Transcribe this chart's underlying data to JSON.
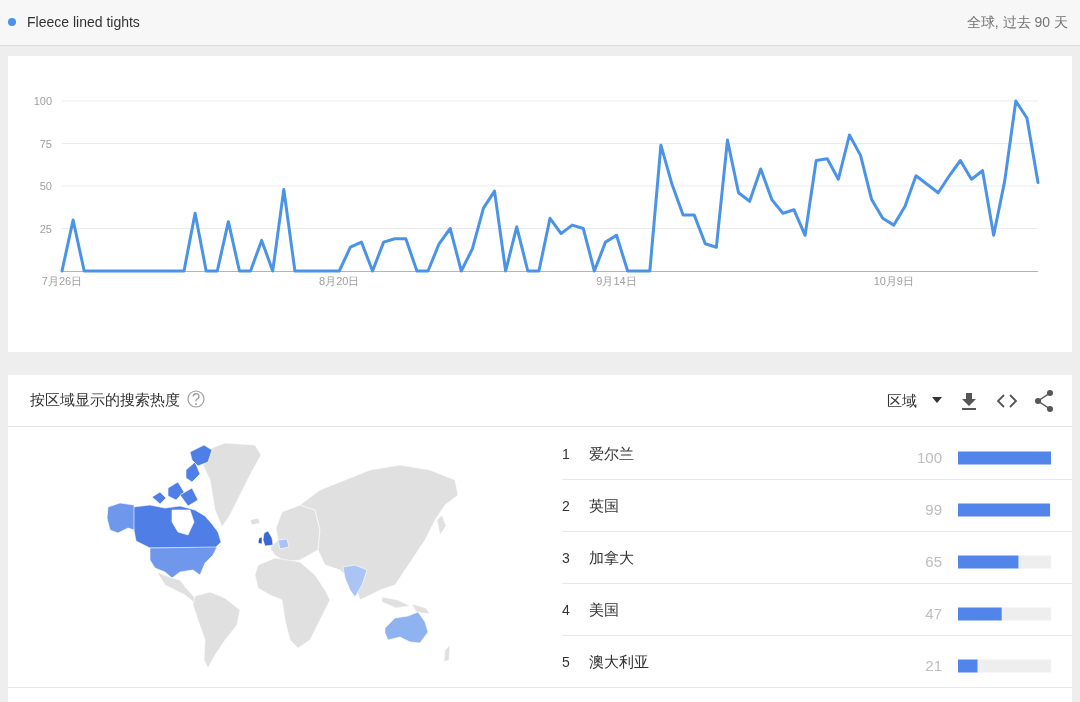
{
  "chart_data": [
    {
      "type": "line",
      "subtitle": "全球, 过去 90 天",
      "legend": "top left",
      "grid": "y",
      "x": [
        "--07-26",
        "--07-27",
        "--07-28",
        "--07-29",
        "--07-30",
        "--07-31",
        "--08-01",
        "--08-02",
        "--08-03",
        "--08-04",
        "--08-05",
        "--08-06",
        "--08-07",
        "--08-08",
        "--08-09",
        "--08-10",
        "--08-11",
        "--08-12",
        "--08-13",
        "--08-14",
        "--08-15",
        "--08-16",
        "--08-17",
        "--08-18",
        "--08-19",
        "--08-20",
        "--08-21",
        "--08-22",
        "--08-23",
        "--08-24",
        "--08-25",
        "--08-26",
        "--08-27",
        "--08-28",
        "--08-29",
        "--08-30",
        "--08-31",
        "--09-01",
        "--09-02",
        "--09-03",
        "--09-04",
        "--09-05",
        "--09-06",
        "--09-07",
        "--09-08",
        "--09-09",
        "--09-10",
        "--09-11",
        "--09-12",
        "--09-13",
        "--09-14",
        "--09-15",
        "--09-16",
        "--09-17",
        "--09-18",
        "--09-19",
        "--09-20",
        "--09-21",
        "--09-22",
        "--09-23",
        "--09-24",
        "--09-25",
        "--09-26",
        "--09-27",
        "--09-28",
        "--09-29",
        "--09-30",
        "--10-01",
        "--10-02",
        "--10-03",
        "--10-04",
        "--10-05",
        "--10-06",
        "--10-07",
        "--10-08",
        "--10-09",
        "--10-10",
        "--10-11",
        "--10-12",
        "--10-13",
        "--10-14",
        "--10-15",
        "--10-16",
        "--10-17",
        "--10-18",
        "--10-19",
        "--10-20",
        "--10-21",
        "--10-22"
      ],
      "xlim": [
        "--07-26",
        "--10-22"
      ],
      "xticks": [
        {
          "value": "--07-26",
          "label": "7月26日"
        },
        {
          "value": "--08-20",
          "label": "8月20日"
        },
        {
          "value": "--09-14",
          "label": "9月14日"
        },
        {
          "value": "--10-09",
          "label": "10月9日"
        }
      ],
      "ylim": [
        0,
        100
      ],
      "yticks": [
        25,
        50,
        75,
        100
      ],
      "series": [
        {
          "name": "Fleece lined tights",
          "color": "#4a93e6",
          "values": [
            0,
            30,
            0,
            0,
            0,
            0,
            0,
            0,
            0,
            0,
            0,
            0,
            34,
            0,
            0,
            29,
            0,
            0,
            18,
            0,
            48,
            0,
            0,
            0,
            0,
            0,
            14,
            17,
            0,
            17,
            19,
            19,
            0,
            0,
            16,
            25,
            0,
            13,
            37,
            47,
            0,
            26,
            0,
            0,
            31,
            22,
            27,
            25,
            0,
            17,
            21,
            0,
            0,
            0,
            74,
            51,
            33,
            33,
            16,
            14,
            77,
            46,
            41,
            60,
            42,
            34,
            36,
            21,
            65,
            66,
            54,
            80,
            68,
            42,
            31,
            27,
            38,
            56,
            51,
            46,
            56,
            65,
            54,
            59,
            21,
            53,
            100,
            90,
            52
          ]
        }
      ]
    },
    {
      "type": "bar",
      "orientation": "horizontal",
      "tick_labels": "y",
      "data_labels": true,
      "categories": [
        "爱尔兰",
        "英国",
        "加拿大",
        "美国",
        "澳大利亚"
      ],
      "values": [
        100,
        99,
        65,
        47,
        21
      ],
      "color": "#5185ea",
      "xlim": [
        0,
        100
      ],
      "annotations": [
        "按区域显示的搜索热度",
        "区域",
        "1",
        "2",
        "3",
        "4",
        "5"
      ]
    }
  ]
}
